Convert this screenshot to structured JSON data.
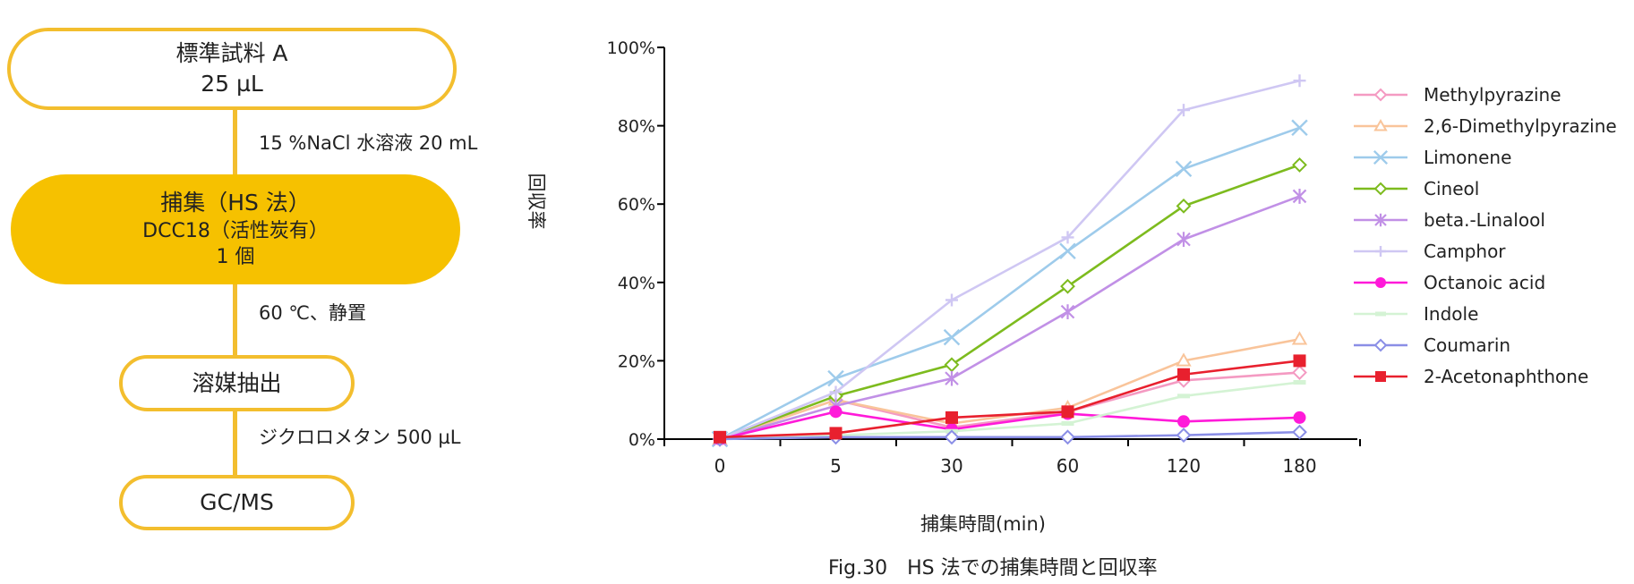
{
  "flowchart": {
    "nodes": [
      {
        "id": "sample",
        "lines": [
          "標準試料 A",
          "25 µL"
        ],
        "filled": false
      },
      {
        "id": "capture",
        "lines": [
          "捕集（HS 法）",
          "DCC18（活性炭有）",
          "1 個"
        ],
        "filled": true
      },
      {
        "id": "extract",
        "lines": [
          "溶媒抽出"
        ],
        "filled": false
      },
      {
        "id": "gcms",
        "lines": [
          "GC/MS"
        ],
        "filled": false
      }
    ],
    "steps": [
      "15 %NaCl 水溶液 20 mL",
      "60 ℃、静置",
      "ジクロロメタン 500 µL"
    ]
  },
  "caption": "Fig.30　HS 法での捕集時間と回収率",
  "chart_data": {
    "type": "line",
    "title": "",
    "xlabel": "捕集時間(min)",
    "ylabel": "回収率",
    "categories": [
      "0",
      "5",
      "30",
      "60",
      "120",
      "180"
    ],
    "ylim": [
      0,
      100
    ],
    "yticks": [
      0,
      20,
      40,
      60,
      80,
      100
    ],
    "ytick_labels": [
      "0%",
      "20%",
      "40%",
      "60%",
      "80%",
      "100%"
    ],
    "legend_position": "right",
    "grid": false,
    "series": [
      {
        "name": "Methylpyrazine",
        "color": "#f49ac2",
        "marker": "diamond-open",
        "values": [
          0,
          10,
          3,
          7,
          15,
          17
        ]
      },
      {
        "name": "2,6-Dimethylpyrazine",
        "color": "#f9c49a",
        "marker": "triangle-open",
        "values": [
          0,
          10,
          4,
          8,
          20,
          25.5
        ]
      },
      {
        "name": "Limonene",
        "color": "#9ecbeb",
        "marker": "x",
        "values": [
          0,
          15.5,
          26,
          48,
          69,
          79.5
        ]
      },
      {
        "name": "Cineol",
        "color": "#7dbb1e",
        "marker": "diamond-open",
        "values": [
          0,
          11,
          19,
          39,
          59.5,
          70
        ]
      },
      {
        "name": "beta.-Linalool",
        "color": "#c190e6",
        "marker": "asterisk",
        "values": [
          0,
          8.5,
          15.5,
          32.5,
          51,
          62
        ]
      },
      {
        "name": "Camphor",
        "color": "#cfc7f3",
        "marker": "plus",
        "values": [
          0,
          12,
          35.5,
          51.5,
          84,
          91.5
        ]
      },
      {
        "name": "Octanoic acid",
        "color": "#ff1ad9",
        "marker": "circle",
        "values": [
          0,
          7,
          2.5,
          6.5,
          4.5,
          5.5
        ]
      },
      {
        "name": "Indole",
        "color": "#d4f3d4",
        "marker": "dash",
        "values": [
          0,
          1,
          2,
          4,
          11,
          14.5
        ]
      },
      {
        "name": "Coumarin",
        "color": "#8a8ee6",
        "marker": "diamond-open",
        "values": [
          0,
          0.5,
          0.5,
          0.5,
          1,
          1.8
        ]
      },
      {
        "name": "2-Acetonaphthone",
        "color": "#e8202e",
        "marker": "square",
        "values": [
          0.5,
          1.5,
          5.5,
          7,
          16.5,
          20
        ]
      }
    ]
  }
}
